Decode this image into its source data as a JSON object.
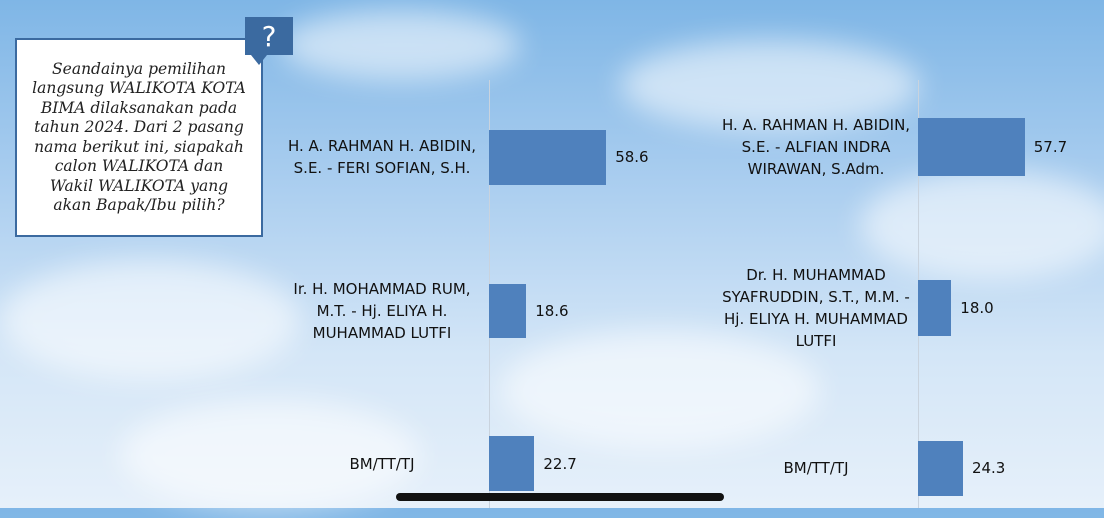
{
  "question": {
    "badge": "?",
    "text": "Seandainya pemilihan langsung WALIKOTA KOTA BIMA dilaksanakan pada tahun 2024. Dari 2 pasang nama berikut ini, siapakah calon WALIKOTA dan Wakil WALIKOTA yang akan Bapak/Ibu pilih?"
  },
  "colors": {
    "bar": "#4f81bd",
    "box_border": "#3b6aa0"
  },
  "chart_data": [
    {
      "type": "bar",
      "orientation": "horizontal",
      "categories": [
        "H. A. RAHMAN H. ABIDIN, S.E. - FERI SOFIAN, S.H.",
        "Ir. H. MOHAMMAD RUM, M.T. - Hj. ELIYA H. MUHAMMAD LUTFI",
        "BM/TT/TJ"
      ],
      "values": [
        58.6,
        18.6,
        22.7
      ],
      "value_labels": [
        "58.6",
        "18.6",
        "22.7"
      ]
    },
    {
      "type": "bar",
      "orientation": "horizontal",
      "categories": [
        "H. A. RAHMAN H. ABIDIN, S.E. - ALFIAN INDRA WIRAWAN, S.Adm.",
        "Dr. H. MUHAMMAD SYAFRUDDIN, S.T., M.M. - Hj. ELIYA H. MUHAMMAD LUTFI",
        "BM/TT/TJ"
      ],
      "values": [
        57.7,
        18.0,
        24.3
      ],
      "value_labels": [
        "57.7",
        "18.0",
        "24.3"
      ]
    }
  ]
}
